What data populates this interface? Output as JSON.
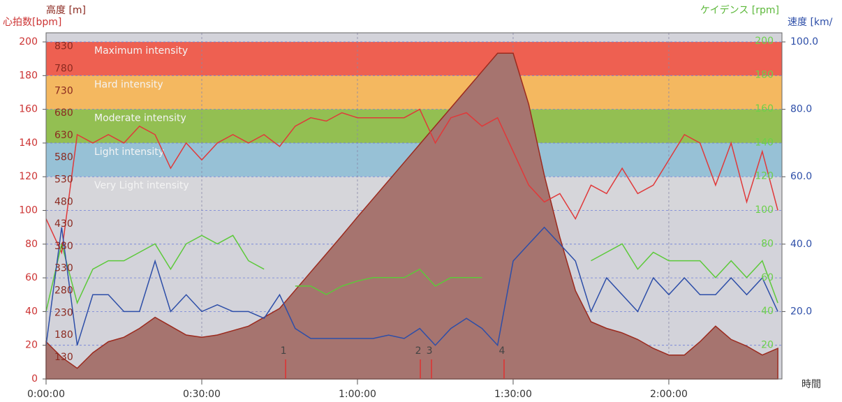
{
  "chart_data": {
    "type": "line",
    "xlabel": "時間",
    "ylabel": "心拍数[bpm]",
    "y2label": "速度 [km/",
    "y3label": "高度 [m]",
    "y4label": "ケイデンス [rpm]",
    "xlim": [
      0,
      8508
    ],
    "xticks": [
      {
        "value": 0,
        "label": "0:00:00"
      },
      {
        "value": 1800,
        "label": "0:30:00"
      },
      {
        "value": 3600,
        "label": "1:00:00"
      },
      {
        "value": 5400,
        "label": "1:30:00"
      },
      {
        "value": 7200,
        "label": "2:00:00"
      }
    ],
    "ylim": [
      0,
      205.4
    ],
    "yticks": [
      0,
      20,
      40,
      60,
      80,
      100,
      120,
      140,
      160,
      180,
      200
    ],
    "y2lim": [
      0,
      102.7
    ],
    "y2ticks": [
      {
        "value": 20,
        "label": "20.0"
      },
      {
        "value": 40,
        "label": "40.0"
      },
      {
        "value": 60,
        "label": "60.0"
      },
      {
        "value": 80,
        "label": "80.0"
      },
      {
        "value": 100,
        "label": "100.0"
      }
    ],
    "y3lim": [
      81,
      861
    ],
    "y3ticks": [
      130,
      180,
      230,
      280,
      330,
      380,
      430,
      480,
      530,
      580,
      630,
      680,
      730,
      780,
      830
    ],
    "y4lim": [
      0,
      205
    ],
    "y4ticks": [
      20,
      40,
      60,
      80,
      100,
      120,
      140,
      160,
      180,
      200
    ],
    "grid": true,
    "zones": [
      {
        "name": "Maximum intensity",
        "from": 180,
        "to": 200,
        "color": "#ee6051"
      },
      {
        "name": "Hard intensity",
        "from": 160,
        "to": 180,
        "color": "#f4b860"
      },
      {
        "name": "Moderate intensity",
        "from": 140,
        "to": 160,
        "color": "#93bf52"
      },
      {
        "name": "Light intensity",
        "from": 120,
        "to": 140,
        "color": "#97c1d6"
      },
      {
        "name": "Very Light intensity",
        "from": 100,
        "to": 120,
        "color": "#d6d6da"
      }
    ],
    "laps": [
      {
        "label": "1",
        "x": 2769
      },
      {
        "label": "2",
        "x": 4327
      },
      {
        "label": "3",
        "x": 4456
      },
      {
        "label": "4",
        "x": 5295
      }
    ],
    "x": [
      0,
      180,
      360,
      540,
      720,
      900,
      1080,
      1260,
      1440,
      1620,
      1800,
      1980,
      2160,
      2340,
      2520,
      2700,
      2880,
      3060,
      3240,
      3420,
      3600,
      3780,
      3960,
      4140,
      4320,
      4500,
      4680,
      4860,
      5040,
      5220,
      5400,
      5580,
      5760,
      5940,
      6120,
      6300,
      6480,
      6660,
      6840,
      7020,
      7200,
      7380,
      7560,
      7740,
      7920,
      8100,
      8280,
      8460
    ],
    "series": [
      {
        "name": "高度",
        "axis": "y3",
        "color": "#9b2a1e",
        "fill": "#a6746f",
        "values": [
          165,
          130,
          105,
          140,
          165,
          175,
          195,
          220,
          200,
          180,
          175,
          180,
          190,
          200,
          220,
          240,
          281,
          322,
          363,
          404,
          446,
          487,
          528,
          569,
          610,
          651,
          692,
          733,
          774,
          815,
          815,
          700,
          540,
          400,
          280,
          210,
          195,
          185,
          170,
          150,
          135,
          135,
          165,
          200,
          170,
          155,
          135,
          150
        ]
      },
      {
        "name": "心拍数",
        "axis": "y",
        "color": "#e0393a",
        "values": [
          95,
          75,
          145,
          140,
          145,
          140,
          150,
          145,
          125,
          140,
          130,
          140,
          145,
          140,
          145,
          138,
          150,
          155,
          153,
          158,
          155,
          155,
          155,
          155,
          160,
          140,
          155,
          158,
          150,
          155,
          135,
          115,
          105,
          110,
          95,
          115,
          110,
          125,
          110,
          115,
          130,
          145,
          140,
          115,
          140,
          105,
          135,
          100
        ]
      },
      {
        "name": "ケイデンス",
        "axis": "y4",
        "color": "#5cc93a",
        "values": [
          40,
          80,
          45,
          65,
          70,
          70,
          75,
          80,
          65,
          80,
          85,
          80,
          85,
          70,
          65,
          null,
          55,
          55,
          50,
          55,
          58,
          60,
          60,
          60,
          65,
          55,
          60,
          60,
          60,
          null,
          null,
          null,
          null,
          null,
          null,
          70,
          75,
          80,
          65,
          75,
          70,
          70,
          70,
          60,
          70,
          60,
          70,
          45
        ]
      },
      {
        "name": "速度",
        "axis": "y2",
        "color": "#2d4ea8",
        "values": [
          10,
          45,
          10,
          25,
          25,
          20,
          20,
          35,
          20,
          25,
          20,
          22,
          20,
          20,
          18,
          25,
          15,
          12,
          12,
          12,
          12,
          12,
          13,
          12,
          15,
          10,
          15,
          18,
          15,
          10,
          35,
          40,
          45,
          40,
          35,
          20,
          30,
          25,
          20,
          30,
          25,
          30,
          25,
          25,
          30,
          25,
          30,
          20
        ]
      }
    ]
  }
}
